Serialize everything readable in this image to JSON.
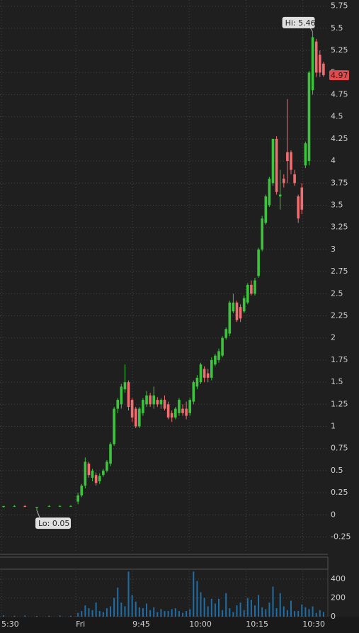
{
  "chart_data": {
    "type": "candlestick",
    "x": [
      -20.6,
      -17.6,
      -14.7,
      -11.4,
      -8,
      -5,
      -2,
      0,
      1,
      2,
      3,
      4,
      5,
      6,
      7,
      8,
      9,
      10,
      11,
      12,
      13,
      14,
      15,
      16,
      17,
      18,
      19,
      20,
      21,
      22,
      23,
      24,
      25,
      26,
      27,
      28,
      29,
      30,
      31,
      32,
      33,
      34,
      35,
      36,
      37,
      38,
      39,
      40,
      41,
      42,
      43,
      44,
      45,
      46,
      47,
      48,
      49,
      50,
      51,
      52,
      53,
      54,
      55,
      56,
      57,
      58,
      59,
      60,
      61,
      62,
      63,
      64,
      65,
      66,
      67,
      68
    ],
    "open": [
      0.09,
      0.1,
      0.1,
      0.08,
      0.1,
      0.1,
      0.1,
      0.15,
      0.22,
      0.33,
      0.58,
      0.42,
      0.45,
      0.38,
      0.45,
      0.5,
      0.58,
      0.8,
      1.2,
      1.25,
      1.42,
      1.5,
      1.3,
      1.2,
      1.0,
      1.15,
      1.25,
      1.35,
      1.25,
      1.3,
      1.25,
      1.3,
      1.25,
      1.15,
      1.1,
      1.15,
      1.2,
      1.2,
      1.15,
      1.28,
      1.45,
      1.5,
      1.65,
      1.6,
      1.55,
      1.7,
      1.75,
      1.8,
      2.0,
      2.05,
      2.3,
      2.4,
      2.35,
      2.3,
      2.4,
      2.6,
      2.5,
      2.7,
      3.0,
      3.3,
      3.5,
      3.75,
      4.25,
      3.6,
      3.8,
      4.1,
      4.1,
      3.85,
      3.6,
      3.7,
      3.95,
      4.0,
      4.8,
      5.35,
      5.2,
      5.1
    ],
    "high": [
      0.1,
      0.11,
      0.11,
      0.09,
      0.11,
      0.11,
      0.11,
      0.25,
      0.35,
      0.65,
      0.6,
      0.52,
      0.48,
      0.47,
      0.52,
      0.62,
      0.82,
      1.22,
      1.32,
      1.48,
      1.7,
      1.52,
      1.32,
      1.22,
      1.22,
      1.32,
      1.4,
      1.38,
      1.45,
      1.33,
      1.32,
      1.35,
      1.28,
      1.18,
      1.22,
      1.32,
      1.25,
      1.28,
      1.32,
      1.52,
      1.58,
      1.72,
      1.68,
      1.65,
      1.78,
      1.82,
      1.88,
      2.02,
      2.12,
      2.42,
      2.5,
      2.42,
      2.38,
      2.48,
      2.62,
      2.65,
      2.68,
      3.02,
      3.38,
      3.62,
      3.82,
      4.25,
      4.28,
      3.9,
      3.85,
      4.7,
      4.12,
      3.9,
      3.62,
      3.75,
      4.22,
      5.02,
      5.46,
      5.38,
      5.25,
      5.12
    ],
    "low": [
      0.08,
      0.09,
      0.09,
      0.05,
      0.09,
      0.09,
      0.09,
      0.12,
      0.2,
      0.3,
      0.42,
      0.38,
      0.33,
      0.35,
      0.43,
      0.48,
      0.55,
      0.78,
      1.15,
      1.2,
      1.38,
      1.18,
      1.05,
      0.98,
      0.98,
      1.12,
      1.22,
      1.22,
      1.2,
      1.22,
      1.2,
      1.18,
      1.08,
      1.05,
      1.08,
      1.12,
      1.12,
      1.08,
      1.12,
      1.25,
      1.42,
      1.48,
      1.5,
      1.5,
      1.52,
      1.68,
      1.72,
      1.78,
      1.98,
      2.02,
      2.28,
      2.18,
      2.18,
      2.28,
      2.38,
      2.48,
      2.48,
      2.68,
      2.98,
      3.28,
      3.48,
      3.72,
      3.62,
      3.45,
      3.7,
      3.75,
      3.85,
      3.72,
      3.3,
      3.4,
      3.92,
      3.95,
      4.75,
      4.95,
      4.95,
      4.95
    ],
    "close": [
      0.1,
      0.1,
      0.09,
      0.09,
      0.1,
      0.1,
      0.1,
      0.22,
      0.33,
      0.6,
      0.45,
      0.5,
      0.36,
      0.44,
      0.5,
      0.6,
      0.8,
      1.2,
      1.3,
      1.45,
      1.5,
      1.22,
      1.1,
      1.0,
      1.2,
      1.3,
      1.35,
      1.25,
      1.35,
      1.25,
      1.3,
      1.2,
      1.1,
      1.1,
      1.2,
      1.3,
      1.15,
      1.12,
      1.3,
      1.5,
      1.55,
      1.7,
      1.55,
      1.55,
      1.75,
      1.8,
      1.85,
      2.0,
      2.1,
      2.4,
      2.4,
      2.2,
      2.22,
      2.45,
      2.6,
      2.5,
      2.65,
      3.0,
      3.35,
      3.6,
      3.8,
      4.25,
      3.65,
      3.62,
      3.75,
      4.0,
      3.9,
      3.75,
      3.35,
      3.45,
      4.2,
      5.0,
      5.4,
      5.0,
      5.0,
      4.97
    ],
    "volume": [
      15,
      10,
      12,
      8,
      10,
      12,
      10,
      40,
      60,
      120,
      90,
      70,
      150,
      60,
      50,
      90,
      110,
      200,
      310,
      150,
      110,
      480,
      230,
      160,
      100,
      90,
      140,
      70,
      100,
      50,
      80,
      60,
      60,
      80,
      90,
      60,
      40,
      60,
      80,
      480,
      380,
      260,
      200,
      110,
      190,
      140,
      190,
      70,
      250,
      90,
      50,
      120,
      150,
      70,
      200,
      180,
      120,
      230,
      100,
      80,
      150,
      320,
      90,
      250,
      110,
      70,
      170,
      60,
      60,
      130,
      100,
      80,
      110,
      40,
      70,
      50
    ],
    "up_color": "#3cc43c",
    "down_color": "#f26d6f",
    "volume_color": "#1f6ea6",
    "xlim": [
      -21.6,
      69.2
    ],
    "xticks": [
      {
        "value": -21.2,
        "label": "5:30"
      },
      {
        "value": -0.6,
        "label": "Fri"
      },
      {
        "value": 15.1,
        "label": "9:45"
      },
      {
        "value": 30.8,
        "label": "10:00"
      },
      {
        "value": 46.5,
        "label": "10:15"
      },
      {
        "value": 62.2,
        "label": "10:30"
      }
    ],
    "ylim": [
      -0.43,
      5.82
    ],
    "yticks": [
      -0.25,
      0,
      0.25,
      0.5,
      0.75,
      1,
      1.25,
      1.5,
      1.75,
      2,
      2.25,
      2.5,
      2.75,
      3,
      3.25,
      3.5,
      3.75,
      4,
      4.25,
      4.5,
      4.75,
      5,
      5.25,
      5.5,
      5.75
    ],
    "volume_ylim": [
      0,
      490
    ],
    "volume_yticks": [
      0,
      200,
      400
    ],
    "grid": true,
    "annotations": [
      {
        "text": "Hi: 5.46",
        "x": 65,
        "y": 5.46,
        "align": "right"
      },
      {
        "text": "Lo: 0.05",
        "x": -11.4,
        "y": 0.05,
        "align": "left"
      }
    ],
    "last_price": {
      "text": "4.97",
      "y": 4.97
    }
  }
}
